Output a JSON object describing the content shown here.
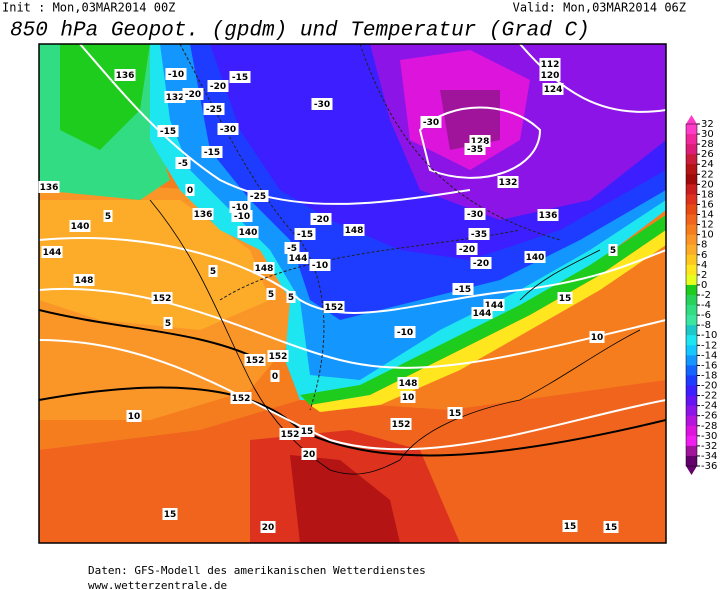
{
  "header": {
    "init": "Init : Mon,03MAR2014 00Z",
    "valid": "Valid: Mon,03MAR2014 06Z",
    "title": "850 hPa Geopot. (gpdm) und Temperatur (Grad C)"
  },
  "colorbar": {
    "labels": [
      "32",
      "30",
      "28",
      "26",
      "24",
      "22",
      "20",
      "18",
      "16",
      "14",
      "12",
      "10",
      "8",
      "6",
      "4",
      "2",
      "0",
      "-2",
      "-4",
      "-6",
      "-8",
      "-10",
      "-12",
      "-14",
      "-16",
      "-18",
      "-20",
      "-22",
      "-24",
      "-26",
      "-28",
      "-30",
      "-32",
      "-34",
      "-36"
    ],
    "colors": [
      "#ff3cc8",
      "#f0289c",
      "#dc1e78",
      "#c81e3c",
      "#b41414",
      "#a00a0a",
      "#c81e1e",
      "#dc321e",
      "#e64b14",
      "#f0641e",
      "#f57d1e",
      "#fa9628",
      "#fcac28",
      "#ffc81e",
      "#ffe61e",
      "#e6ff1e",
      "#1ecc1e",
      "#28d25a",
      "#32dc82",
      "#3ce6a0",
      "#1ec8c8",
      "#1ee6f0",
      "#14c8ff",
      "#1496ff",
      "#1464ff",
      "#1e3cff",
      "#3c1eff",
      "#6414f0",
      "#8c14e6",
      "#b414dc",
      "#dc14dc",
      "#f01ef0",
      "#a0149b",
      "#64006e"
    ]
  },
  "map": {
    "contour_labels": [
      "136",
      "-10",
      "-15",
      "-20",
      "132",
      "-20",
      "-25",
      "-30",
      "-15",
      "-15",
      "-5",
      "0",
      "-25",
      "-10",
      "136",
      "-10",
      "140",
      "-15",
      "-5",
      "144",
      "-10",
      "148",
      "148",
      "-20",
      "-30",
      "-30",
      "128",
      "-35",
      "132",
      "-30",
      "-35",
      "-20",
      "-20",
      "136",
      "140",
      "15",
      "-15",
      "144",
      "144",
      "152",
      "-10",
      "10",
      "152",
      "152",
      "0",
      "152",
      "148",
      "10",
      "152",
      "15",
      "15",
      "152",
      "20",
      "10",
      "15",
      "20",
      "15",
      "15",
      "112",
      "120",
      "124",
      "136",
      "140",
      "144",
      "148",
      "152",
      "5",
      "5",
      "5",
      "5",
      "5",
      "5"
    ]
  },
  "footer": {
    "line1": "Daten: GFS-Modell des amerikanischen Wetterdienstes",
    "line2": "www.wetterzentrale.de"
  }
}
